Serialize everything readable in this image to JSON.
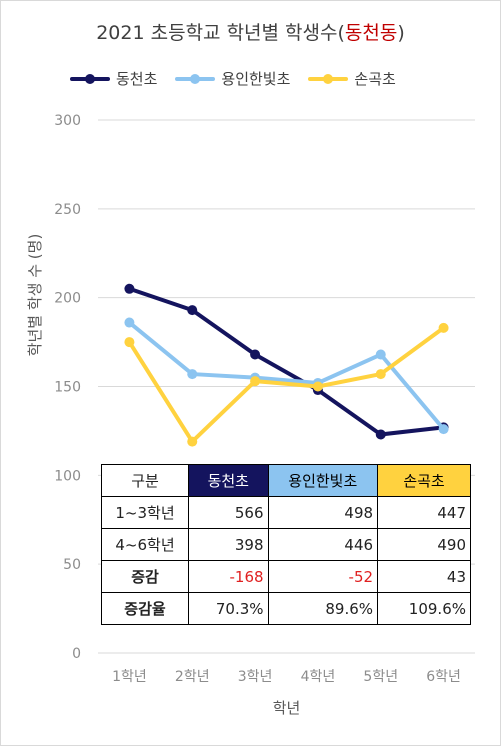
{
  "title_main": "2021 초등학교 학년별 학생수(",
  "title_highlight": "동천동",
  "title_close": ")",
  "chart_data": {
    "type": "line",
    "categories": [
      "1학년",
      "2학년",
      "3학년",
      "4학년",
      "5학년",
      "6학년"
    ],
    "series": [
      {
        "name": "동천초",
        "color": "#14145e",
        "values": [
          205,
          193,
          168,
          148,
          123,
          127
        ]
      },
      {
        "name": "용인한빛초",
        "color": "#8cc4f0",
        "values": [
          186,
          157,
          155,
          152,
          168,
          126
        ]
      },
      {
        "name": "손곡초",
        "color": "#ffd23f",
        "values": [
          175,
          119,
          153,
          150,
          157,
          183
        ]
      }
    ],
    "xlabel": "학년",
    "ylabel": "학년별 학생 수 (명)",
    "ylim": [
      0,
      300
    ],
    "yticks": [
      "0",
      "50",
      "100",
      "150",
      "200",
      "250",
      "300"
    ],
    "grid": true,
    "legend": "top"
  },
  "table": {
    "headers": [
      "구분",
      "동천초",
      "용인한빛초",
      "손곡초"
    ],
    "rows": [
      {
        "label": "1~3학년",
        "cells": [
          "566",
          "498",
          "447"
        ]
      },
      {
        "label": "4~6학년",
        "cells": [
          "398",
          "446",
          "490"
        ]
      },
      {
        "label": "증감",
        "cells": [
          "-168",
          "-52",
          "43"
        ]
      },
      {
        "label": "증감율",
        "cells": [
          "70.3%",
          "89.6%",
          "109.6%"
        ]
      }
    ]
  }
}
